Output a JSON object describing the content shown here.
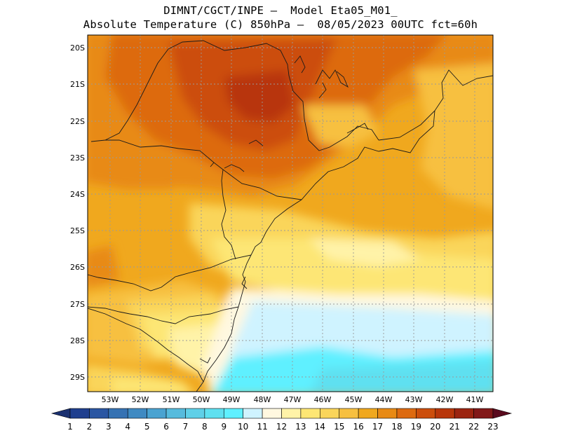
{
  "header": {
    "line1": "DIMNT/CGCT/INPE —  Model Eta05_M01_",
    "line2": "Absolute Temperature (C) 850hPa —  08/05/2023 00UTC fct=60h"
  },
  "axes": {
    "lat_labels": [
      "20S",
      "21S",
      "22S",
      "23S",
      "24S",
      "25S",
      "26S",
      "27S",
      "28S",
      "29S"
    ],
    "lon_labels": [
      "53W",
      "52W",
      "51W",
      "50W",
      "49W",
      "48W",
      "47W",
      "46W",
      "45W",
      "44W",
      "43W",
      "42W",
      "41W"
    ]
  },
  "colorbar": {
    "labels": [
      "1",
      "2",
      "3",
      "4",
      "5",
      "6",
      "7",
      "8",
      "9",
      "10",
      "11",
      "12",
      "13",
      "14",
      "15",
      "16",
      "17",
      "18",
      "19",
      "20",
      "21",
      "22",
      "23"
    ],
    "colors": [
      "#1f3f8f",
      "#2a56a3",
      "#3572b3",
      "#3f8ac2",
      "#4aa3d1",
      "#56bbdd",
      "#5fd0e8",
      "#5fe0f0",
      "#5ff0ff",
      "#cff3ff",
      "#fff8e0",
      "#fff3a8",
      "#fde674",
      "#fad55a",
      "#f7c040",
      "#f0a81e",
      "#e88a14",
      "#dd6a10",
      "#cc4e0c",
      "#b8360a",
      "#9c2410",
      "#821818",
      "#6a0c1e"
    ],
    "left_tip": "#1a3070",
    "right_tip": "#5a0a1e"
  }
}
